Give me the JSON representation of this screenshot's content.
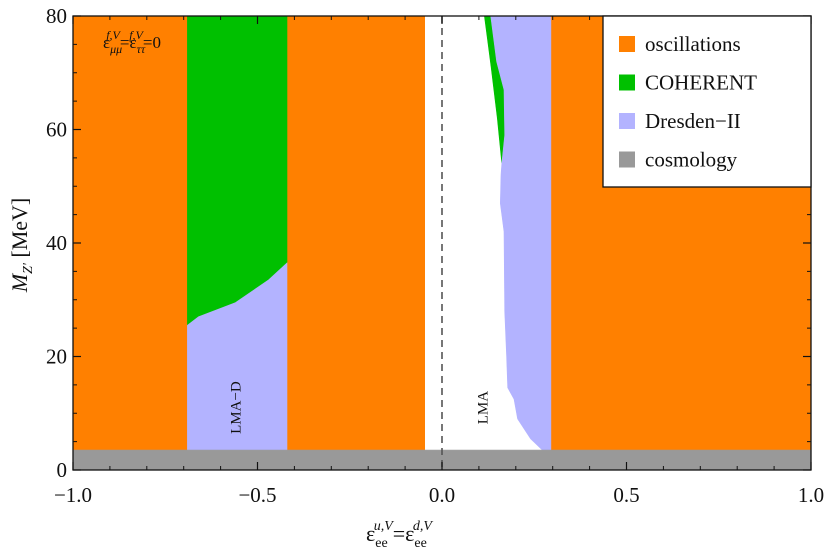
{
  "chart_data": {
    "type": "area",
    "xlim": [
      -1.0,
      1.0
    ],
    "ylim": [
      0,
      80
    ],
    "x_ticks": [
      "-1.0",
      "-0.5",
      "0.0",
      "0.5",
      "1.0"
    ],
    "y_ticks": [
      "0",
      "20",
      "40",
      "60",
      "80"
    ],
    "x_tick_values": [
      -1.0,
      -0.5,
      0.0,
      0.5,
      1.0
    ],
    "y_tick_values": [
      0,
      20,
      40,
      60,
      80
    ],
    "xlabel": {
      "base": "ε",
      "sup": "u,V",
      "sub": "ee",
      "mid": "=",
      "base2": "ε",
      "sup2": "d,V",
      "sub2": "ee"
    },
    "ylabel": {
      "base": "M",
      "sub": "Z'",
      "rest": " [MeV]"
    },
    "annotation": {
      "base1": "ε",
      "sup1": "f,V",
      "sub1": "μμ",
      "mid": "=",
      "base2": "ε",
      "sup2": "f,V",
      "sub2": "ττ",
      "tail": "=0"
    },
    "region_labels": [
      {
        "text": "LMA-D",
        "x": -0.56,
        "y": 11
      },
      {
        "text": "LMA",
        "x": 0.11,
        "y": 11
      }
    ],
    "zero_line_x": 0.0,
    "colors": {
      "oscillations": "#ff8000",
      "coherent": "#00c000",
      "dresden": "#b3b3ff",
      "cosmology": "#999999",
      "allowed": "#ffffff"
    },
    "series": [
      {
        "name": "oscillations",
        "color": "#ff8000",
        "regions": [
          [
            [
              -1.0,
              0
            ],
            [
              -0.69,
              0
            ],
            [
              -0.69,
              80
            ],
            [
              -1.0,
              80
            ]
          ],
          [
            [
              -0.42,
              0
            ],
            [
              -0.047,
              0
            ],
            [
              -0.047,
              80
            ],
            [
              -0.42,
              80
            ]
          ],
          [
            [
              0.295,
              0
            ],
            [
              1.0,
              0
            ],
            [
              1.0,
              80
            ],
            [
              0.295,
              80
            ]
          ]
        ]
      },
      {
        "name": "COHERENT",
        "color": "#00c000",
        "regions": [
          [
            [
              -0.69,
              25.5
            ],
            [
              -0.66,
              27
            ],
            [
              -0.56,
              29.5
            ],
            [
              -0.47,
              33.5
            ],
            [
              -0.42,
              36.5
            ],
            [
              -0.42,
              80
            ],
            [
              -0.69,
              80
            ]
          ],
          [
            [
              0.115,
              80
            ],
            [
              0.132,
              80
            ],
            [
              0.148,
              72
            ],
            [
              0.168,
              67
            ],
            [
              0.17,
              59
            ],
            [
              0.162,
              54
            ],
            [
              0.15,
              62
            ],
            [
              0.133,
              71
            ],
            [
              0.123,
              76
            ]
          ]
        ]
      },
      {
        "name": "Dresden-II",
        "color": "#b3b3ff",
        "regions": [
          [
            [
              -0.69,
              3.5
            ],
            [
              -0.42,
              3.5
            ],
            [
              -0.42,
              36.5
            ],
            [
              -0.47,
              33.5
            ],
            [
              -0.56,
              29.5
            ],
            [
              -0.66,
              27
            ],
            [
              -0.69,
              25.5
            ]
          ],
          [
            [
              0.132,
              80
            ],
            [
              0.295,
              80
            ],
            [
              0.295,
              3.5
            ],
            [
              0.272,
              3.5
            ],
            [
              0.24,
              5.5
            ],
            [
              0.205,
              9
            ],
            [
              0.195,
              12.5
            ],
            [
              0.178,
              14.5
            ],
            [
              0.175,
              20
            ],
            [
              0.17,
              28
            ],
            [
              0.168,
              42
            ],
            [
              0.158,
              47
            ],
            [
              0.16,
              52
            ],
            [
              0.162,
              54
            ],
            [
              0.17,
              59
            ],
            [
              0.168,
              67
            ],
            [
              0.148,
              72
            ]
          ]
        ]
      },
      {
        "name": "cosmology",
        "color": "#999999",
        "regions": [
          [
            [
              -1.0,
              0
            ],
            [
              1.0,
              0
            ],
            [
              1.0,
              3.5
            ],
            [
              -1.0,
              3.5
            ]
          ]
        ]
      }
    ],
    "legend": {
      "position": "top-right",
      "entries": [
        {
          "label": "oscillations",
          "color": "#ff8000"
        },
        {
          "label": "COHERENT",
          "color": "#00c000"
        },
        {
          "label": "Dresden−II",
          "color": "#b3b3ff"
        },
        {
          "label": "cosmology",
          "color": "#999999"
        }
      ]
    },
    "grid": false
  }
}
